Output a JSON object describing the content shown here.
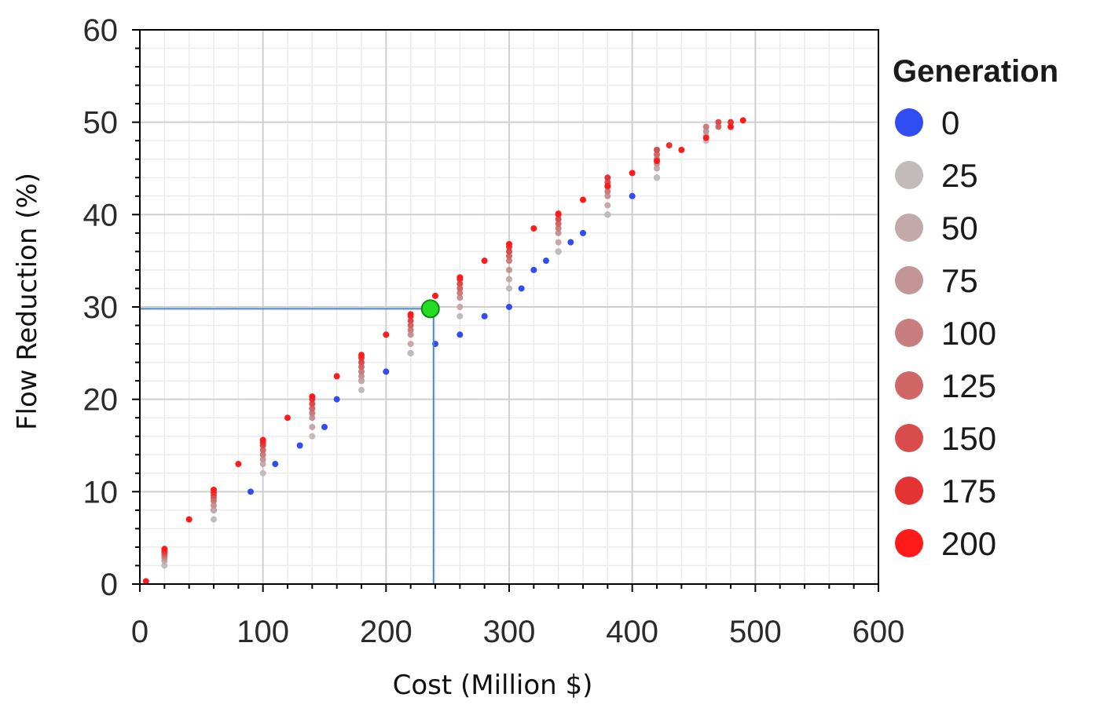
{
  "chart_data": {
    "type": "scatter",
    "title": "",
    "xlabel": "Cost (Million $)",
    "ylabel": "Flow Reduction (%)",
    "xlim": [
      0,
      600
    ],
    "ylim": [
      0,
      60
    ],
    "x_ticks": [
      0,
      100,
      200,
      300,
      400,
      500,
      600
    ],
    "y_ticks": [
      0,
      10,
      20,
      30,
      40,
      50,
      60
    ],
    "x_tick_labels": [
      "0",
      "100",
      "200",
      "300",
      "400",
      "500",
      "600"
    ],
    "y_tick_labels": [
      "0",
      "10",
      "20",
      "30",
      "40",
      "50",
      "60"
    ],
    "grid": true,
    "legend": {
      "title": "Generation",
      "placement": "right"
    },
    "series": [
      {
        "name": "0",
        "color": "#2f4cf5",
        "points": [
          [
            60,
            8
          ],
          [
            90,
            10
          ],
          [
            110,
            13
          ],
          [
            130,
            15
          ],
          [
            150,
            17
          ],
          [
            160,
            20
          ],
          [
            180,
            22
          ],
          [
            200,
            23
          ],
          [
            220,
            25
          ],
          [
            240,
            26
          ],
          [
            260,
            27
          ],
          [
            280,
            29
          ],
          [
            300,
            30
          ],
          [
            310,
            32
          ],
          [
            320,
            34
          ],
          [
            330,
            35
          ],
          [
            340,
            36
          ],
          [
            350,
            37
          ],
          [
            360,
            38
          ],
          [
            380,
            40
          ],
          [
            400,
            42
          ],
          [
            420,
            44
          ]
        ]
      },
      {
        "name": "25",
        "color": "#c1bbbb",
        "points": [
          [
            20,
            2
          ],
          [
            60,
            7
          ],
          [
            100,
            12
          ],
          [
            140,
            16
          ],
          [
            180,
            21
          ],
          [
            220,
            25
          ],
          [
            260,
            29
          ],
          [
            300,
            32
          ],
          [
            340,
            36
          ],
          [
            380,
            40
          ],
          [
            420,
            44
          ],
          [
            460,
            48
          ]
        ]
      },
      {
        "name": "50",
        "color": "#c3a9a9",
        "points": [
          [
            20,
            2.5
          ],
          [
            60,
            8
          ],
          [
            100,
            13
          ],
          [
            140,
            17
          ],
          [
            180,
            22
          ],
          [
            220,
            26
          ],
          [
            260,
            30
          ],
          [
            300,
            33
          ],
          [
            340,
            37
          ],
          [
            380,
            41
          ],
          [
            420,
            45
          ],
          [
            460,
            48.5
          ]
        ]
      },
      {
        "name": "75",
        "color": "#c49595",
        "points": [
          [
            20,
            2.8
          ],
          [
            60,
            8.5
          ],
          [
            100,
            13.5
          ],
          [
            140,
            18
          ],
          [
            180,
            22.5
          ],
          [
            220,
            27
          ],
          [
            260,
            31
          ],
          [
            300,
            34
          ],
          [
            340,
            38
          ],
          [
            380,
            42
          ],
          [
            420,
            45.5
          ],
          [
            460,
            49
          ]
        ]
      },
      {
        "name": "100",
        "color": "#c87e7e",
        "points": [
          [
            20,
            3
          ],
          [
            60,
            9
          ],
          [
            100,
            14
          ],
          [
            140,
            18.5
          ],
          [
            180,
            23
          ],
          [
            220,
            27.5
          ],
          [
            260,
            31.5
          ],
          [
            300,
            35
          ],
          [
            340,
            38.5
          ],
          [
            380,
            42.5
          ],
          [
            420,
            46
          ],
          [
            460,
            49.5
          ]
        ]
      },
      {
        "name": "125",
        "color": "#d06666",
        "points": [
          [
            20,
            3.2
          ],
          [
            60,
            9.3
          ],
          [
            100,
            14.5
          ],
          [
            140,
            19
          ],
          [
            180,
            23.5
          ],
          [
            220,
            28
          ],
          [
            260,
            32
          ],
          [
            300,
            35.5
          ],
          [
            340,
            39
          ],
          [
            380,
            43
          ],
          [
            420,
            46.5
          ],
          [
            470,
            49.5
          ]
        ]
      },
      {
        "name": "150",
        "color": "#d94c4c",
        "points": [
          [
            20,
            3.4
          ],
          [
            60,
            9.6
          ],
          [
            100,
            15
          ],
          [
            140,
            19.5
          ],
          [
            180,
            24
          ],
          [
            220,
            28.5
          ],
          [
            260,
            32.5
          ],
          [
            300,
            36
          ],
          [
            340,
            39.5
          ],
          [
            380,
            43.5
          ],
          [
            420,
            47
          ],
          [
            470,
            50
          ]
        ]
      },
      {
        "name": "175",
        "color": "#e53333",
        "points": [
          [
            20,
            3.6
          ],
          [
            60,
            9.9
          ],
          [
            100,
            15.3
          ],
          [
            140,
            20
          ],
          [
            180,
            24.5
          ],
          [
            220,
            29
          ],
          [
            260,
            33
          ],
          [
            300,
            36.5
          ],
          [
            340,
            40
          ],
          [
            380,
            44
          ],
          [
            430,
            47.5
          ],
          [
            480,
            50
          ]
        ]
      },
      {
        "name": "200",
        "color": "#ff1a1a",
        "points": [
          [
            5,
            0.3
          ],
          [
            20,
            3.8
          ],
          [
            40,
            7
          ],
          [
            60,
            10.2
          ],
          [
            80,
            13
          ],
          [
            100,
            15.6
          ],
          [
            120,
            18
          ],
          [
            140,
            20.3
          ],
          [
            160,
            22.5
          ],
          [
            180,
            24.8
          ],
          [
            200,
            27
          ],
          [
            220,
            29.2
          ],
          [
            240,
            31.2
          ],
          [
            260,
            33.2
          ],
          [
            280,
            35
          ],
          [
            300,
            36.8
          ],
          [
            320,
            38.5
          ],
          [
            340,
            40.1
          ],
          [
            360,
            41.6
          ],
          [
            380,
            43.1
          ],
          [
            400,
            44.5
          ],
          [
            420,
            45.8
          ],
          [
            440,
            47
          ],
          [
            460,
            48.3
          ],
          [
            480,
            49.5
          ],
          [
            490,
            50.2
          ]
        ]
      }
    ],
    "highlight_point": {
      "x": 236,
      "y": 29.8,
      "color": "#22dd22"
    },
    "reference_line_color": "#4a86c8"
  }
}
